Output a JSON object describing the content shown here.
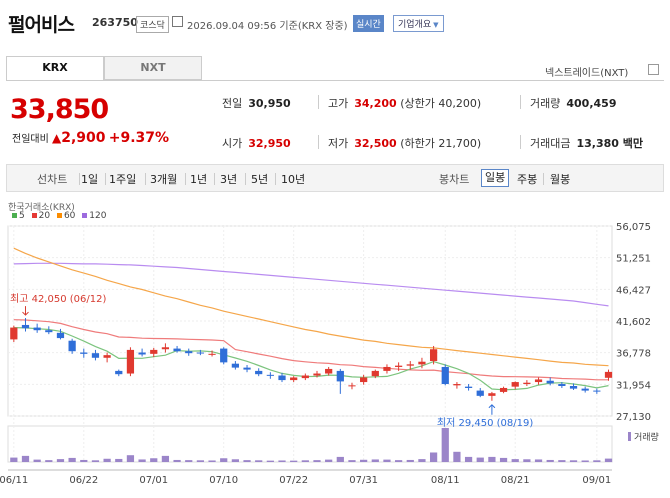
{
  "header": {
    "name": "펄어비스",
    "code": "263750",
    "market": "코스닥",
    "datetime": "2026.09.04 09:56 기준(KRX 장중)",
    "realtime": "실시간",
    "company_info": "기업개요"
  },
  "tabs": {
    "krx": "KRX",
    "nxt": "NXT",
    "nextrade": "넥스트레이드(NXT)"
  },
  "quote": {
    "price": "33,850",
    "change_label": "전일대비",
    "change": "2,900",
    "change_pct": "+9.37%",
    "prev_close_label": "전일",
    "prev_close": "30,950",
    "high_label": "고가",
    "high": "34,200",
    "upper_limit": "(상한가 40,200)",
    "volume_label": "거래량",
    "volume": "400,459",
    "open_label": "시가",
    "open": "32,950",
    "low_label": "저가",
    "low": "32,500",
    "lower_limit": "(하한가 21,700)",
    "amount_label": "거래대금",
    "amount": "13,380 백만"
  },
  "period_bar": {
    "line_chart": "선차트",
    "periods": [
      "1일",
      "1주일",
      "3개월",
      "1년",
      "3년",
      "5년",
      "10년"
    ],
    "candle_chart": "봉차트",
    "candle_types": [
      "일봉",
      "주봉",
      "월봉"
    ],
    "active_candle": "일봉"
  },
  "chart_data": {
    "type": "candlestick",
    "exchange_label": "한국거래소(KRX)",
    "ma_legend": [
      {
        "name": "5",
        "color": "#4caf50"
      },
      {
        "name": "20",
        "color": "#e53935"
      },
      {
        "name": "60",
        "color": "#fb8c00"
      },
      {
        "name": "120",
        "color": "#9c6ade"
      }
    ],
    "y_ticks": [
      "56,075",
      "51,251",
      "46,427",
      "41,602",
      "36,778",
      "31,954",
      "27,130"
    ],
    "ylim": [
      27130,
      56075
    ],
    "x_ticks": [
      "06/11",
      "06/22",
      "07/01",
      "07/10",
      "07/22",
      "07/31",
      "08/11",
      "08/21",
      "09/01"
    ],
    "x_tick_index": [
      0,
      6,
      12,
      18,
      24,
      30,
      37,
      43,
      50
    ],
    "high_annotation": "최고 42,050 (06/12)",
    "high_index": 1,
    "high_value": 42050,
    "low_annotation": "최저 29,450 (08/19)",
    "low_index": 41,
    "low_value": 29450,
    "volume_label": "거래량",
    "candles": [
      [
        38800,
        40900,
        38400,
        40600
      ],
      [
        41000,
        42050,
        40000,
        40500
      ],
      [
        40600,
        41200,
        39800,
        40200
      ],
      [
        40200,
        40800,
        39600,
        39900
      ],
      [
        39800,
        40400,
        38800,
        39000
      ],
      [
        38600,
        38900,
        36600,
        37000
      ],
      [
        36800,
        37400,
        36000,
        36600
      ],
      [
        36700,
        37200,
        35600,
        36000
      ],
      [
        36000,
        36800,
        35300,
        36400
      ],
      [
        34000,
        34200,
        33200,
        33500
      ],
      [
        33600,
        37600,
        33200,
        37200
      ],
      [
        36800,
        37400,
        36200,
        36500
      ],
      [
        36600,
        37500,
        36100,
        37200
      ],
      [
        37300,
        38200,
        36800,
        37600
      ],
      [
        37400,
        37800,
        36800,
        37000
      ],
      [
        37000,
        37400,
        36300,
        36700
      ],
      [
        36800,
        37200,
        36400,
        36700
      ],
      [
        36600,
        37100,
        36200,
        36600
      ],
      [
        37400,
        37600,
        35000,
        35300
      ],
      [
        35100,
        35500,
        34200,
        34500
      ],
      [
        34500,
        34900,
        33800,
        34200
      ],
      [
        34000,
        34400,
        33200,
        33500
      ],
      [
        33400,
        33800,
        32800,
        33300
      ],
      [
        33300,
        33700,
        32300,
        32600
      ],
      [
        32600,
        33200,
        32300,
        33000
      ],
      [
        32900,
        33600,
        32600,
        33300
      ],
      [
        33300,
        34000,
        33000,
        33600
      ],
      [
        33600,
        34600,
        33300,
        34300
      ],
      [
        34000,
        34300,
        30500,
        32400
      ],
      [
        31800,
        32200,
        31200,
        31800
      ],
      [
        32300,
        33400,
        31900,
        33000
      ],
      [
        33200,
        34200,
        32900,
        34000
      ],
      [
        34000,
        35000,
        33600,
        34600
      ],
      [
        34600,
        35300,
        34000,
        34800
      ],
      [
        34800,
        35500,
        34200,
        35000
      ],
      [
        35000,
        36000,
        34400,
        35400
      ],
      [
        35500,
        37800,
        35000,
        37300
      ],
      [
        34600,
        35000,
        31800,
        32000
      ],
      [
        31800,
        32300,
        31300,
        32000
      ],
      [
        31600,
        32000,
        31000,
        31400
      ],
      [
        31000,
        31400,
        30000,
        30200
      ],
      [
        30200,
        30800,
        29450,
        30600
      ],
      [
        30800,
        31600,
        30600,
        31400
      ],
      [
        31600,
        32400,
        31200,
        32300
      ],
      [
        32000,
        32600,
        31700,
        32200
      ],
      [
        32300,
        33000,
        31900,
        32700
      ],
      [
        32500,
        33000,
        31800,
        32100
      ],
      [
        32000,
        32300,
        31400,
        31700
      ],
      [
        31700,
        32100,
        31100,
        31300
      ],
      [
        31300,
        31600,
        30700,
        31000
      ],
      [
        31000,
        31300,
        30500,
        30950
      ],
      [
        32950,
        34200,
        32500,
        33850
      ]
    ],
    "volumes": [
      130,
      180,
      70,
      55,
      85,
      120,
      60,
      50,
      95,
      90,
      200,
      75,
      110,
      180,
      60,
      55,
      50,
      45,
      110,
      80,
      55,
      50,
      40,
      45,
      40,
      50,
      55,
      70,
      150,
      55,
      65,
      75,
      70,
      55,
      60,
      85,
      280,
      1000,
      300,
      150,
      130,
      150,
      120,
      85,
      80,
      75,
      60,
      55,
      50,
      45,
      50,
      100
    ]
  }
}
